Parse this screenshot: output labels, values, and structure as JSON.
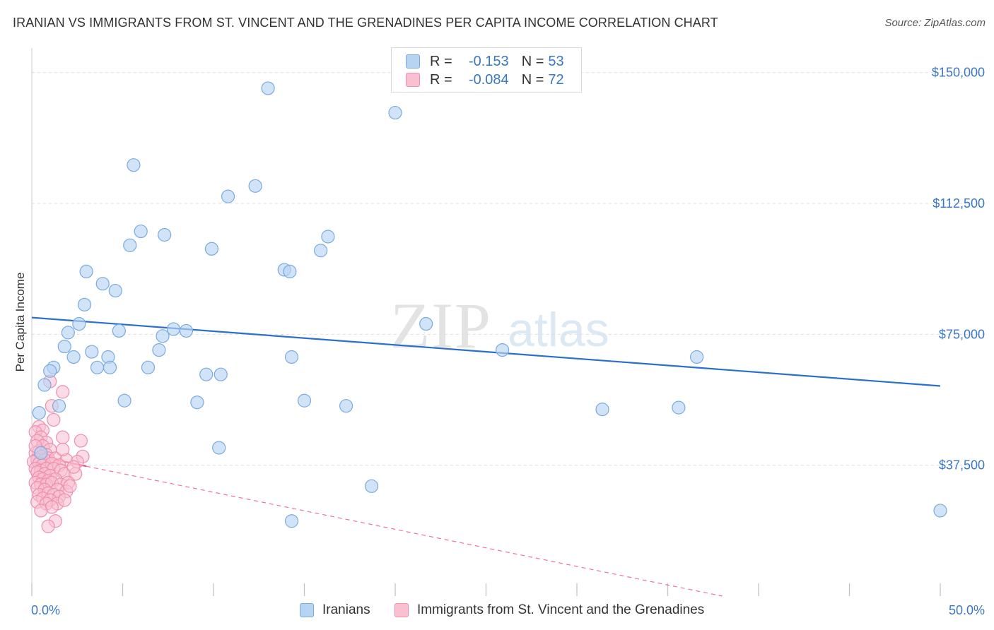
{
  "title": "IRANIAN VS IMMIGRANTS FROM ST. VINCENT AND THE GRENADINES PER CAPITA INCOME CORRELATION CHART",
  "source": "Source: ZipAtlas.com",
  "watermark": {
    "zip": "ZIP",
    "atlas": "atlas"
  },
  "legend": {
    "iranians": {
      "r_label": "R =",
      "r_value": "-0.153",
      "n_label": "N =",
      "n_value": "53"
    },
    "svg": {
      "r_label": "R =",
      "r_value": "-0.084",
      "n_label": "N =",
      "n_value": "72"
    }
  },
  "bottom_legend": {
    "iranians": "Iranians",
    "svg": "Immigrants from St. Vincent and the Grenadines"
  },
  "colors": {
    "blue_fill": "#b8d4f3",
    "blue_stroke": "#7aaae0",
    "blue_line": "#2a6fcf",
    "pink_fill": "#f8c0d1",
    "pink_stroke": "#ee8fab",
    "pink_line": "#e8507e",
    "tick_text": "#3b78c3",
    "grid": "#dddddd"
  },
  "chart_data": {
    "type": "scatter",
    "ylabel": "Per Capita Income",
    "xlabel": "",
    "xlim": [
      0,
      50
    ],
    "ylim": [
      0,
      155000
    ],
    "x_tick_labels": [
      "0.0%",
      "50.0%"
    ],
    "y_ticks": [
      37500,
      75000,
      112500,
      150000
    ],
    "y_tick_labels": [
      "$37,500",
      "$75,000",
      "$112,500",
      "$150,000"
    ],
    "grid": true,
    "series": [
      {
        "name": "Iranians",
        "color": "blue",
        "trend": {
          "x0": 0,
          "y0": 79800,
          "x1": 50,
          "y1": 60200,
          "dashed_extension": false
        },
        "points": [
          [
            13.0,
            145500
          ],
          [
            20.0,
            138500
          ],
          [
            5.6,
            123500
          ],
          [
            12.3,
            117500
          ],
          [
            10.8,
            114500
          ],
          [
            6.0,
            104500
          ],
          [
            7.3,
            103500
          ],
          [
            16.3,
            103000
          ],
          [
            5.4,
            100500
          ],
          [
            9.9,
            99500
          ],
          [
            15.9,
            99000
          ],
          [
            13.9,
            93500
          ],
          [
            14.2,
            93000
          ],
          [
            3.0,
            93000
          ],
          [
            3.9,
            89500
          ],
          [
            4.6,
            87500
          ],
          [
            2.9,
            83500
          ],
          [
            2.6,
            78000
          ],
          [
            21.7,
            78000
          ],
          [
            7.8,
            76500
          ],
          [
            8.5,
            76000
          ],
          [
            4.8,
            76000
          ],
          [
            2.0,
            75500
          ],
          [
            7.2,
            74500
          ],
          [
            1.8,
            71500
          ],
          [
            7.0,
            70500
          ],
          [
            3.3,
            70000
          ],
          [
            2.3,
            68500
          ],
          [
            4.2,
            68500
          ],
          [
            14.3,
            68500
          ],
          [
            25.9,
            70500
          ],
          [
            36.6,
            68500
          ],
          [
            1.2,
            65500
          ],
          [
            3.6,
            65500
          ],
          [
            4.3,
            65500
          ],
          [
            6.4,
            65500
          ],
          [
            9.6,
            63500
          ],
          [
            10.4,
            63500
          ],
          [
            1.0,
            64500
          ],
          [
            0.7,
            60500
          ],
          [
            5.1,
            56000
          ],
          [
            9.1,
            55500
          ],
          [
            15.0,
            56000
          ],
          [
            17.3,
            54500
          ],
          [
            1.5,
            54500
          ],
          [
            31.4,
            53500
          ],
          [
            35.6,
            54000
          ],
          [
            0.4,
            52500
          ],
          [
            10.3,
            42500
          ],
          [
            0.5,
            41000
          ],
          [
            18.7,
            31500
          ],
          [
            14.3,
            21500
          ],
          [
            50.0,
            24500
          ]
        ]
      },
      {
        "name": "Immigrants from St. Vincent and the Grenadines",
        "color": "pink",
        "trend": {
          "x0": 0,
          "y0": 40500,
          "x1": 3.0,
          "y1": 37200,
          "dashed_to": [
            38,
            0
          ]
        },
        "points": [
          [
            1.7,
            58500
          ],
          [
            1.0,
            61500
          ],
          [
            1.1,
            54500
          ],
          [
            1.2,
            50500
          ],
          [
            0.4,
            48500
          ],
          [
            0.6,
            47500
          ],
          [
            0.2,
            47000
          ],
          [
            0.5,
            45500
          ],
          [
            2.7,
            44500
          ],
          [
            0.8,
            44000
          ],
          [
            1.7,
            45500
          ],
          [
            0.3,
            44500
          ],
          [
            0.6,
            43000
          ],
          [
            1.0,
            42000
          ],
          [
            0.4,
            41500
          ],
          [
            0.2,
            41000
          ],
          [
            0.8,
            40500
          ],
          [
            0.5,
            40000
          ],
          [
            0.9,
            39500
          ],
          [
            0.3,
            39000
          ],
          [
            0.7,
            39000
          ],
          [
            1.3,
            39500
          ],
          [
            1.9,
            39000
          ],
          [
            2.8,
            40000
          ],
          [
            0.1,
            38500
          ],
          [
            0.4,
            38000
          ],
          [
            0.6,
            37500
          ],
          [
            1.1,
            38000
          ],
          [
            1.5,
            37500
          ],
          [
            2.5,
            38500
          ],
          [
            0.2,
            36500
          ],
          [
            0.5,
            36000
          ],
          [
            0.8,
            36500
          ],
          [
            1.2,
            36500
          ],
          [
            1.6,
            36000
          ],
          [
            0.3,
            35500
          ],
          [
            0.7,
            35000
          ],
          [
            1.0,
            34500
          ],
          [
            1.8,
            35000
          ],
          [
            2.4,
            35000
          ],
          [
            0.4,
            34000
          ],
          [
            0.6,
            33500
          ],
          [
            0.9,
            33000
          ],
          [
            1.3,
            33500
          ],
          [
            0.2,
            32500
          ],
          [
            0.5,
            32000
          ],
          [
            0.8,
            32000
          ],
          [
            1.1,
            32500
          ],
          [
            1.6,
            32000
          ],
          [
            2.0,
            32500
          ],
          [
            0.3,
            31000
          ],
          [
            0.7,
            30500
          ],
          [
            1.4,
            30500
          ],
          [
            1.9,
            30000
          ],
          [
            0.4,
            29000
          ],
          [
            0.9,
            29500
          ],
          [
            1.2,
            29000
          ],
          [
            1.5,
            28500
          ],
          [
            0.6,
            28000
          ],
          [
            1.0,
            27500
          ],
          [
            0.3,
            27000
          ],
          [
            1.4,
            26500
          ],
          [
            0.8,
            26500
          ],
          [
            1.1,
            25500
          ],
          [
            1.8,
            27500
          ],
          [
            0.5,
            24500
          ],
          [
            1.3,
            21500
          ],
          [
            0.9,
            20000
          ],
          [
            2.1,
            31500
          ],
          [
            2.3,
            37000
          ],
          [
            1.7,
            42000
          ],
          [
            0.2,
            43000
          ]
        ]
      }
    ]
  }
}
